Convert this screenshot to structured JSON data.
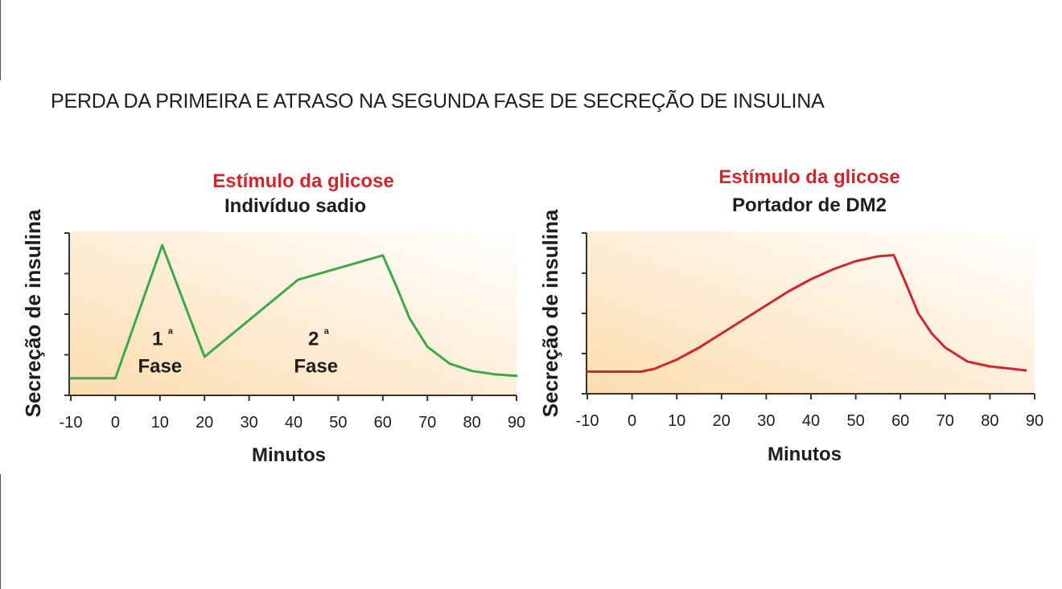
{
  "title": "PERDA DA PRIMEIRA E ATRASO NA SEGUNDA FASE DE SECREÇÃO DE INSULINA",
  "colors": {
    "stimulus_text": "#d0262d",
    "healthy_line": "#3aab49",
    "dm2_line": "#d0262d",
    "background_gradient": [
      "#fcdcae",
      "#ffffff"
    ]
  },
  "chart_data": [
    {
      "type": "line",
      "title": "Estímulo da glicose",
      "subtitle": "Indivíduo sadio",
      "xlabel": "Minutos",
      "ylabel": "Secreção de insulina",
      "xlim": [
        -10,
        90
      ],
      "ylim": [
        0,
        4
      ],
      "x_ticks": [
        "-10",
        "0",
        "10",
        "20",
        "30",
        "40",
        "50",
        "60",
        "70",
        "80",
        "90"
      ],
      "y_tick_labels_shown": false,
      "grid": false,
      "series": [
        {
          "color": "#3aab49",
          "x": [
            -10,
            0,
            10.5,
            20,
            41,
            60,
            63,
            66,
            70,
            75,
            80,
            85,
            90
          ],
          "y": [
            0.42,
            0.42,
            3.7,
            0.95,
            2.85,
            3.45,
            2.7,
            1.9,
            1.2,
            0.78,
            0.6,
            0.52,
            0.48
          ]
        }
      ],
      "annotations": [
        {
          "sup": "a",
          "number": "1",
          "text": "Fase",
          "x": 10,
          "y": 1.0
        },
        {
          "sup": "a",
          "number": "2",
          "text": "Fase",
          "x": 45,
          "y": 1.0
        }
      ]
    },
    {
      "type": "line",
      "title": "Estímulo da glicose",
      "subtitle": "Portador de DM2",
      "xlabel": "Minutos",
      "ylabel": "Secreção de insulina",
      "xlim": [
        -10,
        90
      ],
      "ylim": [
        0,
        4
      ],
      "x_ticks": [
        "-10",
        "0",
        "10",
        "20",
        "30",
        "40",
        "50",
        "60",
        "70",
        "80",
        "90"
      ],
      "y_tick_labels_shown": false,
      "grid": false,
      "series": [
        {
          "color": "#d0262d",
          "x": [
            -10,
            2,
            5,
            10,
            15,
            20,
            25,
            30,
            35,
            40,
            45,
            50,
            55,
            58.5,
            61,
            64,
            67,
            70,
            75,
            80,
            85,
            88
          ],
          "y": [
            0.55,
            0.55,
            0.62,
            0.85,
            1.15,
            1.5,
            1.85,
            2.2,
            2.55,
            2.85,
            3.1,
            3.3,
            3.42,
            3.45,
            2.8,
            2.0,
            1.5,
            1.15,
            0.8,
            0.68,
            0.62,
            0.58
          ]
        }
      ]
    }
  ]
}
